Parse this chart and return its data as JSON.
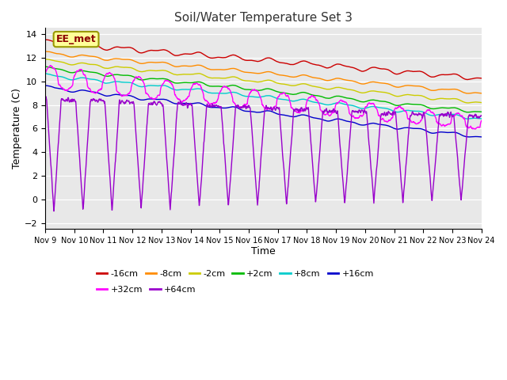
{
  "title": "Soil/Water Temperature Set 3",
  "xlabel": "Time",
  "ylabel": "Temperature (C)",
  "ylim": [
    -2.5,
    14.5
  ],
  "xlim": [
    0,
    15
  ],
  "yticks": [
    -2,
    0,
    2,
    4,
    6,
    8,
    10,
    12,
    14
  ],
  "xtick_labels": [
    "Nov 9",
    "Nov 10",
    "Nov 11",
    "Nov 12",
    "Nov 13",
    "Nov 14",
    "Nov 15",
    "Nov 16",
    "Nov 17",
    "Nov 18",
    "Nov 19",
    "Nov 20",
    "Nov 21",
    "Nov 22",
    "Nov 23",
    "Nov 24"
  ],
  "annotation_text": "EE_met",
  "bg_color": "#e8e8e8",
  "grid_color": "#ffffff",
  "series_order": [
    "-16cm",
    "-8cm",
    "-2cm",
    "+2cm",
    "+8cm",
    "+16cm",
    "+32cm",
    "+64cm"
  ],
  "series": {
    "-16cm": {
      "color": "#cc0000",
      "start": 13.3,
      "end": 10.25,
      "smooth": true
    },
    "-8cm": {
      "color": "#ff8c00",
      "start": 12.4,
      "end": 9.0,
      "smooth": true
    },
    "-2cm": {
      "color": "#cccc00",
      "start": 11.75,
      "end": 8.2,
      "smooth": true
    },
    "+2cm": {
      "color": "#00bb00",
      "start": 11.1,
      "end": 7.4,
      "smooth": true
    },
    "+8cm": {
      "color": "#00cccc",
      "start": 10.5,
      "end": 6.85,
      "smooth": true
    },
    "+16cm": {
      "color": "#0000cc",
      "start": 9.5,
      "end": 5.3,
      "smooth": true
    },
    "+32cm": {
      "color": "#ff00ff",
      "start": 9.9,
      "end": 6.2,
      "smooth": false,
      "spike_amp": 1.5
    },
    "+64cm": {
      "color": "#9900cc",
      "start": 8.5,
      "end": 7.0,
      "smooth": false,
      "spike_amp": 9.0
    }
  },
  "line_width": 1.0
}
